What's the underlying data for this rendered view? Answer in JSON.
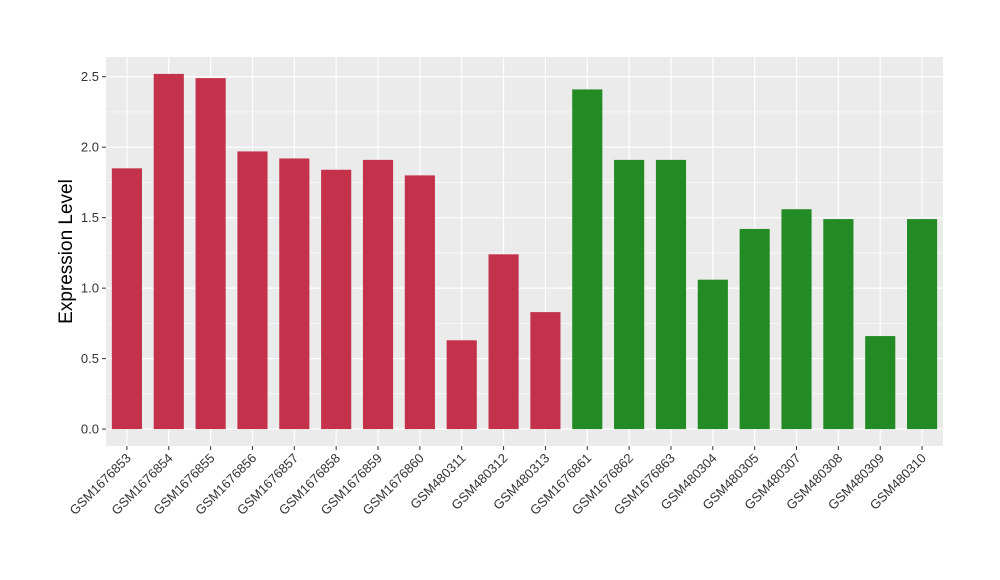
{
  "chart_data": {
    "type": "bar",
    "title": "",
    "xlabel": "",
    "ylabel": "Expression Level",
    "ylim": [
      -0.12,
      2.64
    ],
    "yticks": [
      0.0,
      0.5,
      1.0,
      1.5,
      2.0,
      2.5
    ],
    "ytick_labels": [
      "0.0",
      "0.5",
      "1.0",
      "1.5",
      "2.0",
      "2.5"
    ],
    "grid": true,
    "legend": "none",
    "categories": [
      "GSM1676853",
      "GSM1676854",
      "GSM1676855",
      "GSM1676856",
      "GSM1676857",
      "GSM1676858",
      "GSM1676859",
      "GSM1676860",
      "GSM480311",
      "GSM480312",
      "GSM480313",
      "GSM1676861",
      "GSM1676862",
      "GSM1676863",
      "GSM480304",
      "GSM480305",
      "GSM480307",
      "GSM480308",
      "GSM480309",
      "GSM480310"
    ],
    "values": [
      1.85,
      2.52,
      2.49,
      1.97,
      1.92,
      1.84,
      1.91,
      1.8,
      0.63,
      1.24,
      0.83,
      2.41,
      1.91,
      1.91,
      1.06,
      1.42,
      1.56,
      1.49,
      0.66,
      1.49
    ],
    "group": [
      "red",
      "red",
      "red",
      "red",
      "red",
      "red",
      "red",
      "red",
      "red",
      "red",
      "red",
      "green",
      "green",
      "green",
      "green",
      "green",
      "green",
      "green",
      "green",
      "green"
    ],
    "colors": {
      "red": "#c3314b",
      "green": "#238b23",
      "panel": "#ebebeb",
      "grid": "#ffffff"
    }
  }
}
